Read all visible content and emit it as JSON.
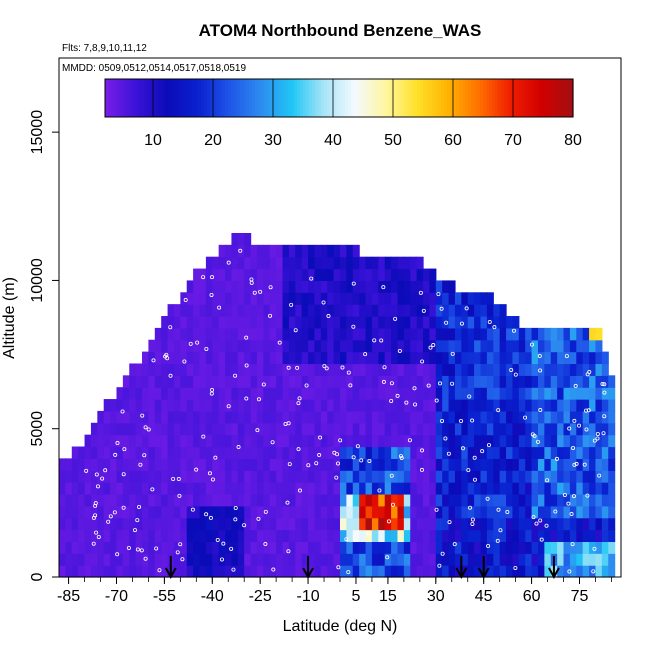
{
  "chart_data": {
    "type": "heatmap",
    "title": "ATOM4 Northbound Benzene_WAS",
    "flights_note": "Flts: 7,8,9,10,11,12",
    "dates_note": "MMDD: 0509,0512,0514,0517,0518,0519",
    "xlabel": "Latitude (deg N)",
    "ylabel": "Altitude (m)",
    "xlim": [
      -88,
      88
    ],
    "ylim": [
      0,
      17500
    ],
    "x_ticks": [
      "-85",
      "-70",
      "-55",
      "-40",
      "-25",
      "-10",
      "5",
      "15",
      "30",
      "45",
      "60",
      "75"
    ],
    "x_tick_values": [
      -85,
      -70,
      -55,
      -40,
      -25,
      -10,
      5,
      15,
      30,
      45,
      60,
      75
    ],
    "y_ticks": [
      "0",
      "5000",
      "10000",
      "15000"
    ],
    "y_tick_values": [
      0,
      5000,
      10000,
      15000
    ],
    "colorbar": {
      "min": 2,
      "max": 80,
      "ticks": [
        "10",
        "20",
        "30",
        "40",
        "50",
        "60",
        "70",
        "80"
      ],
      "tick_values": [
        10,
        20,
        30,
        40,
        50,
        60,
        70,
        80
      ],
      "colors": [
        "#7a1ee8",
        "#3a12d8",
        "#0b0bb8",
        "#0a22d0",
        "#1f55e8",
        "#2d8cf0",
        "#20c6f5",
        "#a6e4f7",
        "#f3f9ff",
        "#fff6a0",
        "#ffe02a",
        "#ffb300",
        "#ff6f00",
        "#f01d00",
        "#d10000",
        "#a30f12"
      ]
    },
    "arrow_latitudes": [
      -53,
      -10,
      38,
      45,
      67
    ],
    "envelope": [
      [
        -88,
        3300
      ],
      [
        -85,
        3900
      ],
      [
        -80,
        4300
      ],
      [
        -75,
        5200
      ],
      [
        -70,
        6000
      ],
      [
        -65,
        6700
      ],
      [
        -60,
        7500
      ],
      [
        -55,
        8400
      ],
      [
        -50,
        9200
      ],
      [
        -45,
        10100
      ],
      [
        -40,
        10600
      ],
      [
        -35,
        11000
      ],
      [
        -30,
        11400
      ],
      [
        -25,
        10900
      ],
      [
        -15,
        10900
      ],
      [
        -5,
        10900
      ],
      [
        5,
        10800
      ],
      [
        15,
        10800
      ],
      [
        20,
        10700
      ],
      [
        25,
        10400
      ],
      [
        30,
        9800
      ],
      [
        35,
        9600
      ],
      [
        45,
        9500
      ],
      [
        55,
        8400
      ],
      [
        65,
        8400
      ],
      [
        75,
        8400
      ],
      [
        80,
        8300
      ],
      [
        84,
        6500
      ],
      [
        85,
        0
      ]
    ]
  }
}
